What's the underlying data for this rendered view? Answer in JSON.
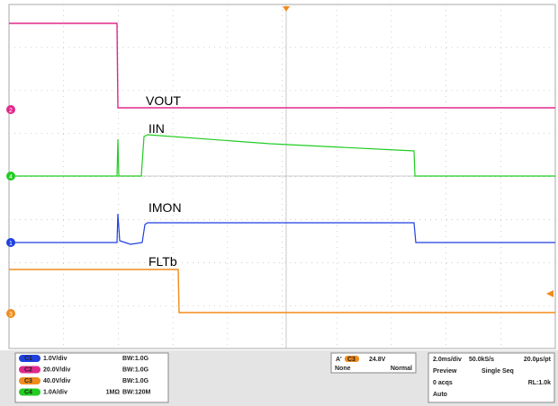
{
  "traces": [
    {
      "label": "VOUT"
    },
    {
      "label": "IIN"
    },
    {
      "label": "IMON"
    },
    {
      "label": "FLTb"
    }
  ],
  "markers": [
    "2",
    "4",
    "1",
    "3"
  ],
  "channels": [
    {
      "badge": "C1",
      "scale": "1.0V/div",
      "impedance": "",
      "bw": "BW:1.0G"
    },
    {
      "badge": "C2",
      "scale": "20.0V/div",
      "impedance": "",
      "bw": "BW:1.0G"
    },
    {
      "badge": "C3",
      "scale": "40.0V/div",
      "impedance": "",
      "bw": "BW:1.0G"
    },
    {
      "badge": "C4",
      "scale": "1.0A/div",
      "impedance": "1MΩ",
      "bw": "BW:120M"
    }
  ],
  "trigger": {
    "mode_label": "A'",
    "source": "C3",
    "level": "24.8V",
    "coupling": "None",
    "mode": "Normal"
  },
  "acquisition": {
    "timebase": "2.0ms/div",
    "rate": "50.0kS/s",
    "resolution": "20.0µs/pt",
    "state": "Preview",
    "run": "Single Seq",
    "acqs": "0 acqs",
    "record": "RL:1.0k",
    "trig_mode": "Auto"
  }
}
